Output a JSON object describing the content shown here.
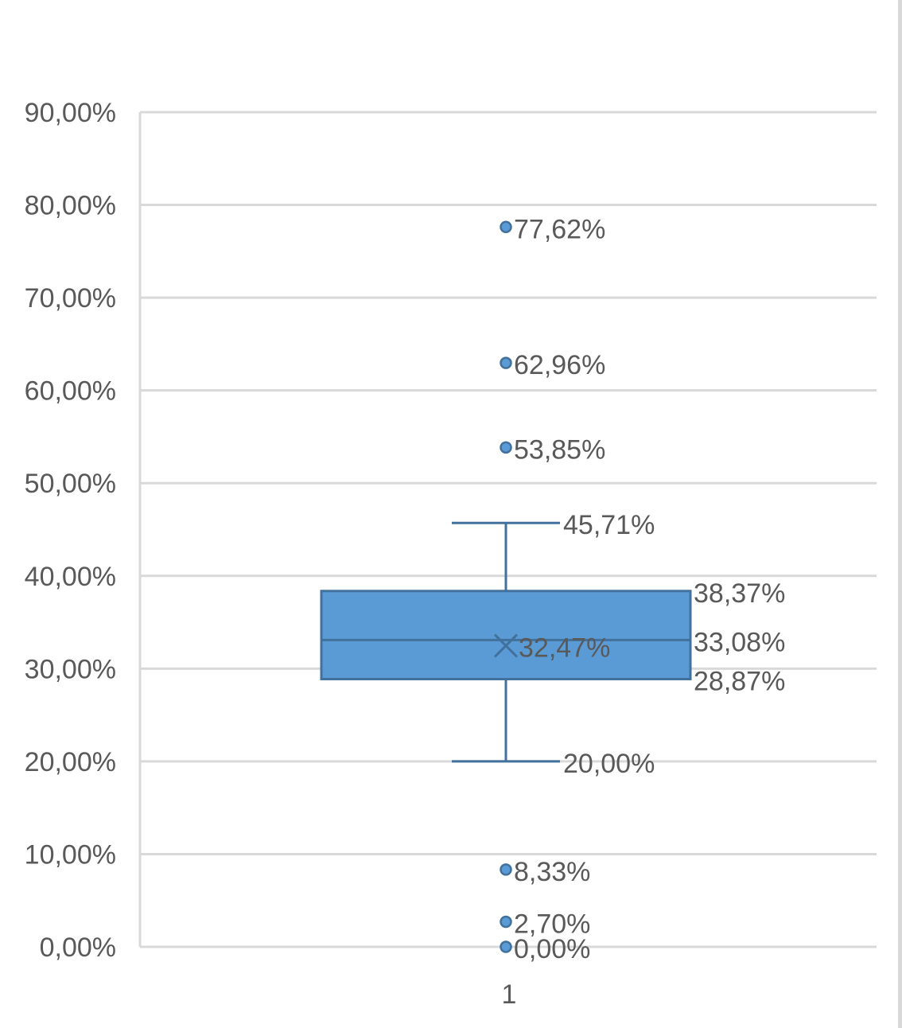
{
  "chart_data": {
    "type": "box",
    "ylim": [
      0,
      0.9
    ],
    "y_ticks": [
      "0,00%",
      "10,00%",
      "20,00%",
      "30,00%",
      "40,00%",
      "50,00%",
      "60,00%",
      "70,00%",
      "80,00%",
      "90,00%"
    ],
    "categories": [
      "1"
    ],
    "grid": true,
    "box": {
      "whisker_low": 0.2,
      "q1": 0.2887,
      "median": 0.3308,
      "q3": 0.3837,
      "whisker_high": 0.4571,
      "mean": 0.3247,
      "outliers": [
        0.7762,
        0.6296,
        0.5385,
        0.0833,
        0.027,
        0.0
      ]
    },
    "labels": {
      "whisker_low": "20,00%",
      "q1": "28,87%",
      "median": "33,08%",
      "q3": "38,37%",
      "whisker_high": "45,71%",
      "mean": "32,47%",
      "outliers": [
        "77,62%",
        "62,96%",
        "53,85%",
        "8,33%",
        "2,70%",
        "0,00%"
      ]
    },
    "colors": {
      "box_fill": "#5b9bd5",
      "box_stroke": "#41719c",
      "grid": "#d9d9d9",
      "text": "#595959"
    }
  }
}
